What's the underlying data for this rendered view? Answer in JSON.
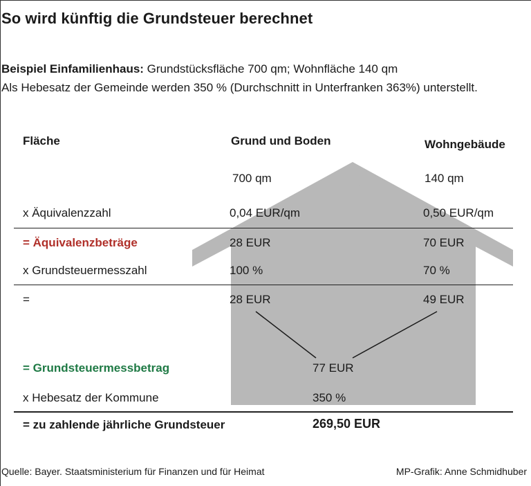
{
  "title": "So wird künftig die Grundsteuer berechnet",
  "intro": {
    "line1_bold": "Beispiel Einfamilienhaus:",
    "line1_rest": " Grundstücksfläche 700 qm; Wohnfläche 140 qm",
    "line2": "Als Hebesatz der Gemeinde werden 350 % (Durchschnitt in Unterfranken 363%) unterstellt."
  },
  "headers": {
    "label": "Fläche",
    "col1": "Grund und Boden",
    "col2": "Wohngebäude"
  },
  "rows": {
    "flaeche": {
      "col1": "700 qm",
      "col2": "140 qm"
    },
    "aequivalenzzahl": {
      "label": "x Äquivalenzzahl",
      "col1": "0,04 EUR/qm",
      "col2": "0,50 EUR/qm"
    },
    "aequivalenzbetraege": {
      "label": "= Äquivalenzbeträge",
      "col1": "28 EUR",
      "col2": "70 EUR"
    },
    "messzahl": {
      "label": "x Grundsteuermesszahl",
      "col1": "100 %",
      "col2": "70 %"
    },
    "zwischen": {
      "label": "=",
      "col1": "28 EUR",
      "col2": "49 EUR"
    },
    "messbetrag": {
      "label": "= Grundsteuermessbetrag",
      "value": "77 EUR"
    },
    "hebesatz": {
      "label": "x Hebesatz der Kommune",
      "value": "350 %"
    },
    "ergebnis": {
      "label": "= zu zahlende jährliche Grundsteuer",
      "value": "269,50 EUR"
    }
  },
  "footer": {
    "source": "Quelle: Bayer. Staatsministerium für Finanzen und für Heimat",
    "credit": "MP-Grafik: Anne Schmidhuber"
  },
  "colors": {
    "highlight_red": "#b0302a",
    "highlight_green": "#1f7a45",
    "house_gray": "#b8b8b8"
  },
  "icons": [
    "house-icon"
  ]
}
